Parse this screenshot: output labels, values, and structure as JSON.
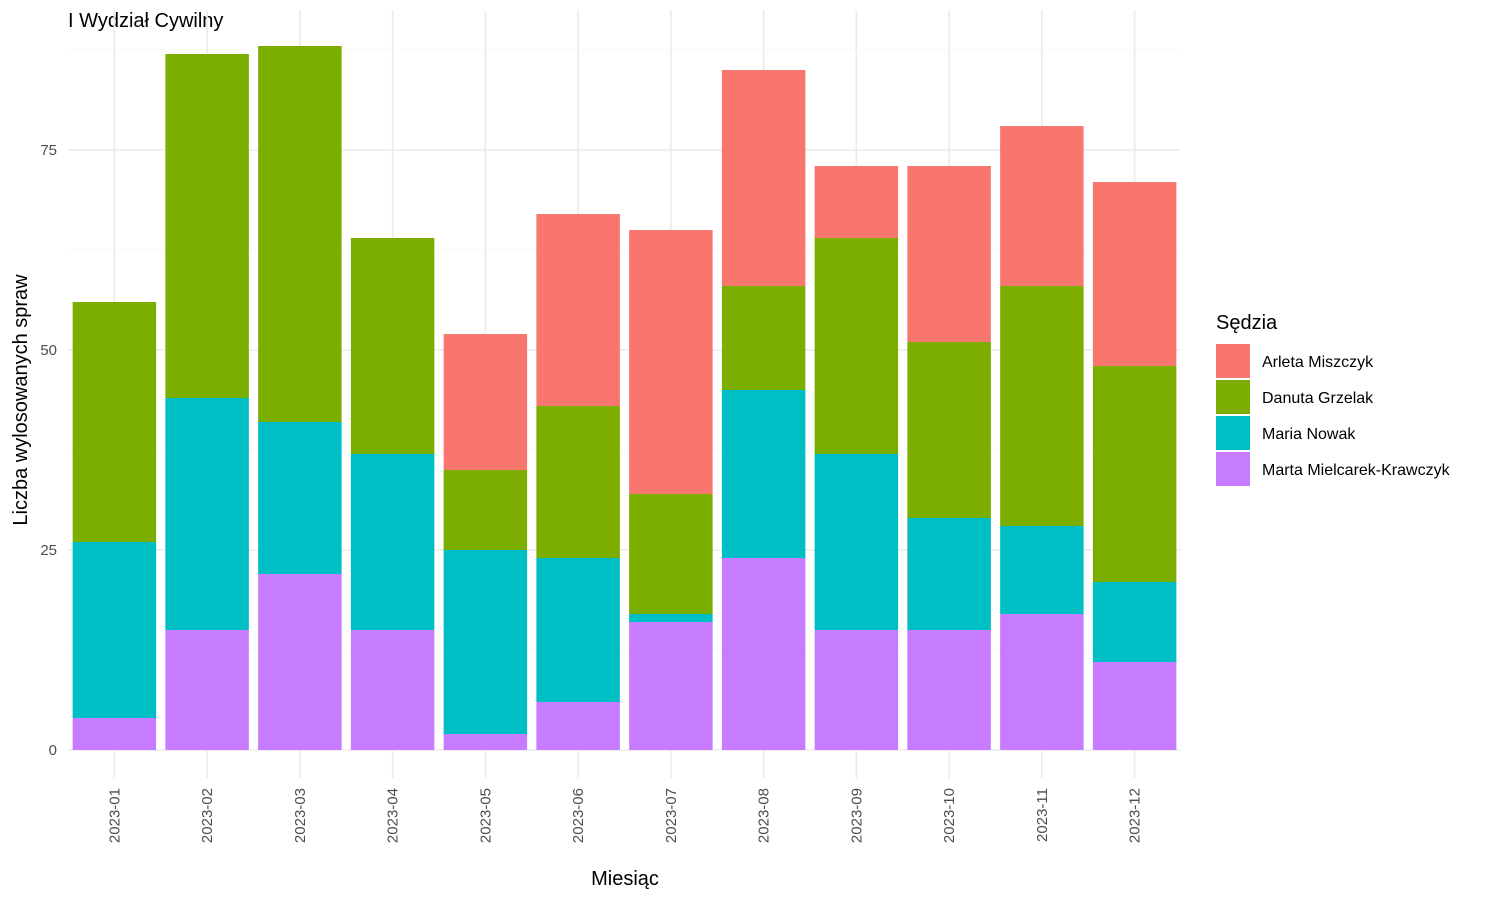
{
  "chart_data": {
    "type": "bar",
    "stacked": true,
    "title": "I Wydział Cywilny",
    "xlabel": "Miesiąc",
    "ylabel": "Liczba wylosowanych spraw",
    "ylim": [
      0,
      90
    ],
    "yticks": [
      0,
      25,
      50,
      75
    ],
    "grid": true,
    "legend_position": "right",
    "legend_title": "Sędzia",
    "categories": [
      "2023-01",
      "2023-02",
      "2023-03",
      "2023-04",
      "2023-05",
      "2023-06",
      "2023-07",
      "2023-08",
      "2023-09",
      "2023-10",
      "2023-11",
      "2023-12"
    ],
    "series": [
      {
        "name": "Arleta Miszczyk",
        "color": "#F8766D",
        "values": [
          0,
          0,
          0,
          0,
          17,
          24,
          33,
          27,
          9,
          22,
          20,
          23
        ]
      },
      {
        "name": "Danuta Grzelak",
        "color": "#7CAE00",
        "values": [
          30,
          43,
          47,
          27,
          10,
          19,
          15,
          13,
          27,
          22,
          30,
          27
        ]
      },
      {
        "name": "Maria Nowak",
        "color": "#00BFC4",
        "values": [
          22,
          29,
          19,
          22,
          23,
          18,
          1,
          21,
          22,
          14,
          11,
          10
        ]
      },
      {
        "name": "Marta Mielcarek-Krawczyk",
        "color": "#C77CFF",
        "values": [
          4,
          15,
          22,
          15,
          2,
          6,
          16,
          24,
          15,
          15,
          17,
          11
        ]
      }
    ]
  }
}
